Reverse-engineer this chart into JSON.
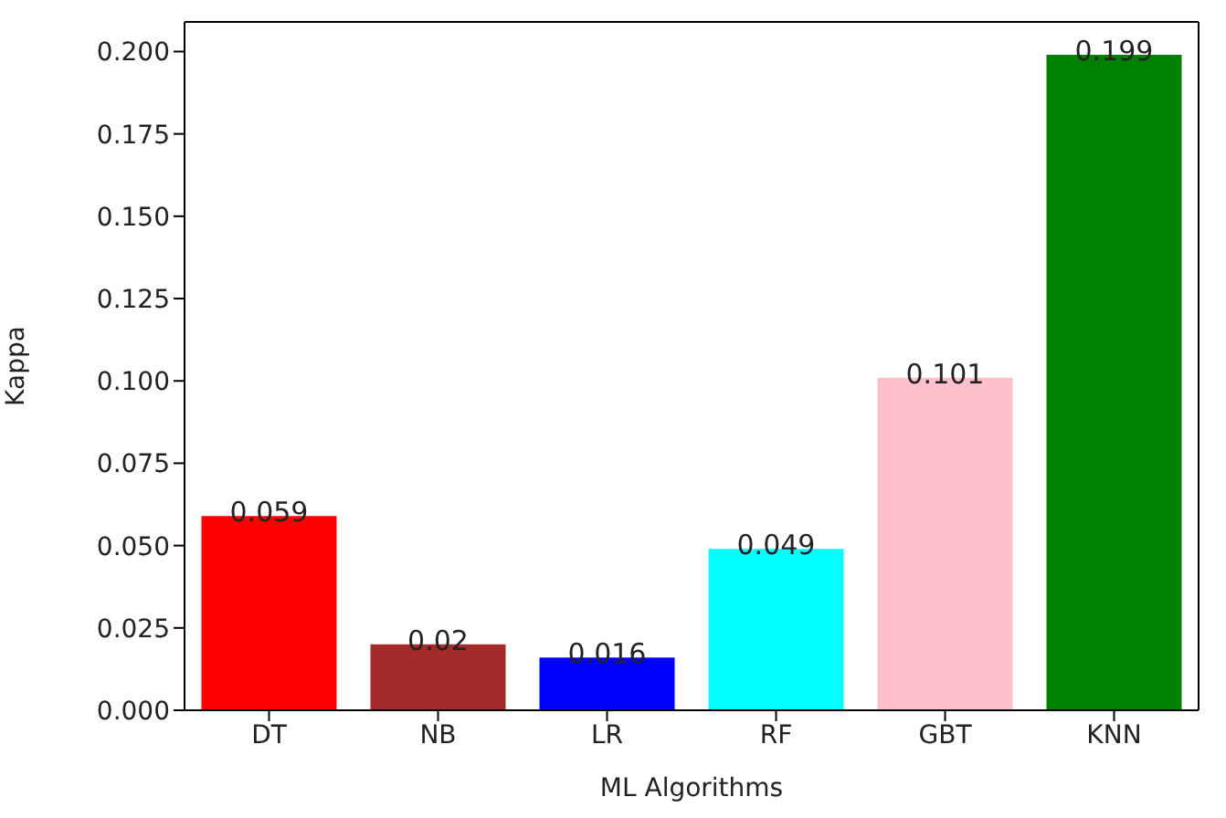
{
  "chart_data": {
    "type": "bar",
    "xlabel": "ML Algorithms",
    "ylabel": "Kappa",
    "categories": [
      "DT",
      "NB",
      "LR",
      "RF",
      "GBT",
      "KNN"
    ],
    "values": [
      0.059,
      0.02,
      0.016,
      0.049,
      0.101,
      0.199
    ],
    "colors": [
      "#ff0000",
      "#a52a2a",
      "#0000ff",
      "#00ffff",
      "#ffc0cb",
      "#008000"
    ],
    "ylim": [
      0,
      0.209
    ],
    "yticks": [
      {
        "value": 0,
        "label": "0.000"
      },
      {
        "value": 0.025,
        "label": "0.025"
      },
      {
        "value": 0.05,
        "label": "0.050"
      },
      {
        "value": 0.075,
        "label": "0.075"
      },
      {
        "value": 0.1,
        "label": "0.100"
      },
      {
        "value": 0.125,
        "label": "0.125"
      },
      {
        "value": 0.15,
        "label": "0.150"
      },
      {
        "value": 0.175,
        "label": "0.175"
      },
      {
        "value": 0.2,
        "label": "0.200"
      }
    ],
    "data_labels": true,
    "grid": false
  }
}
